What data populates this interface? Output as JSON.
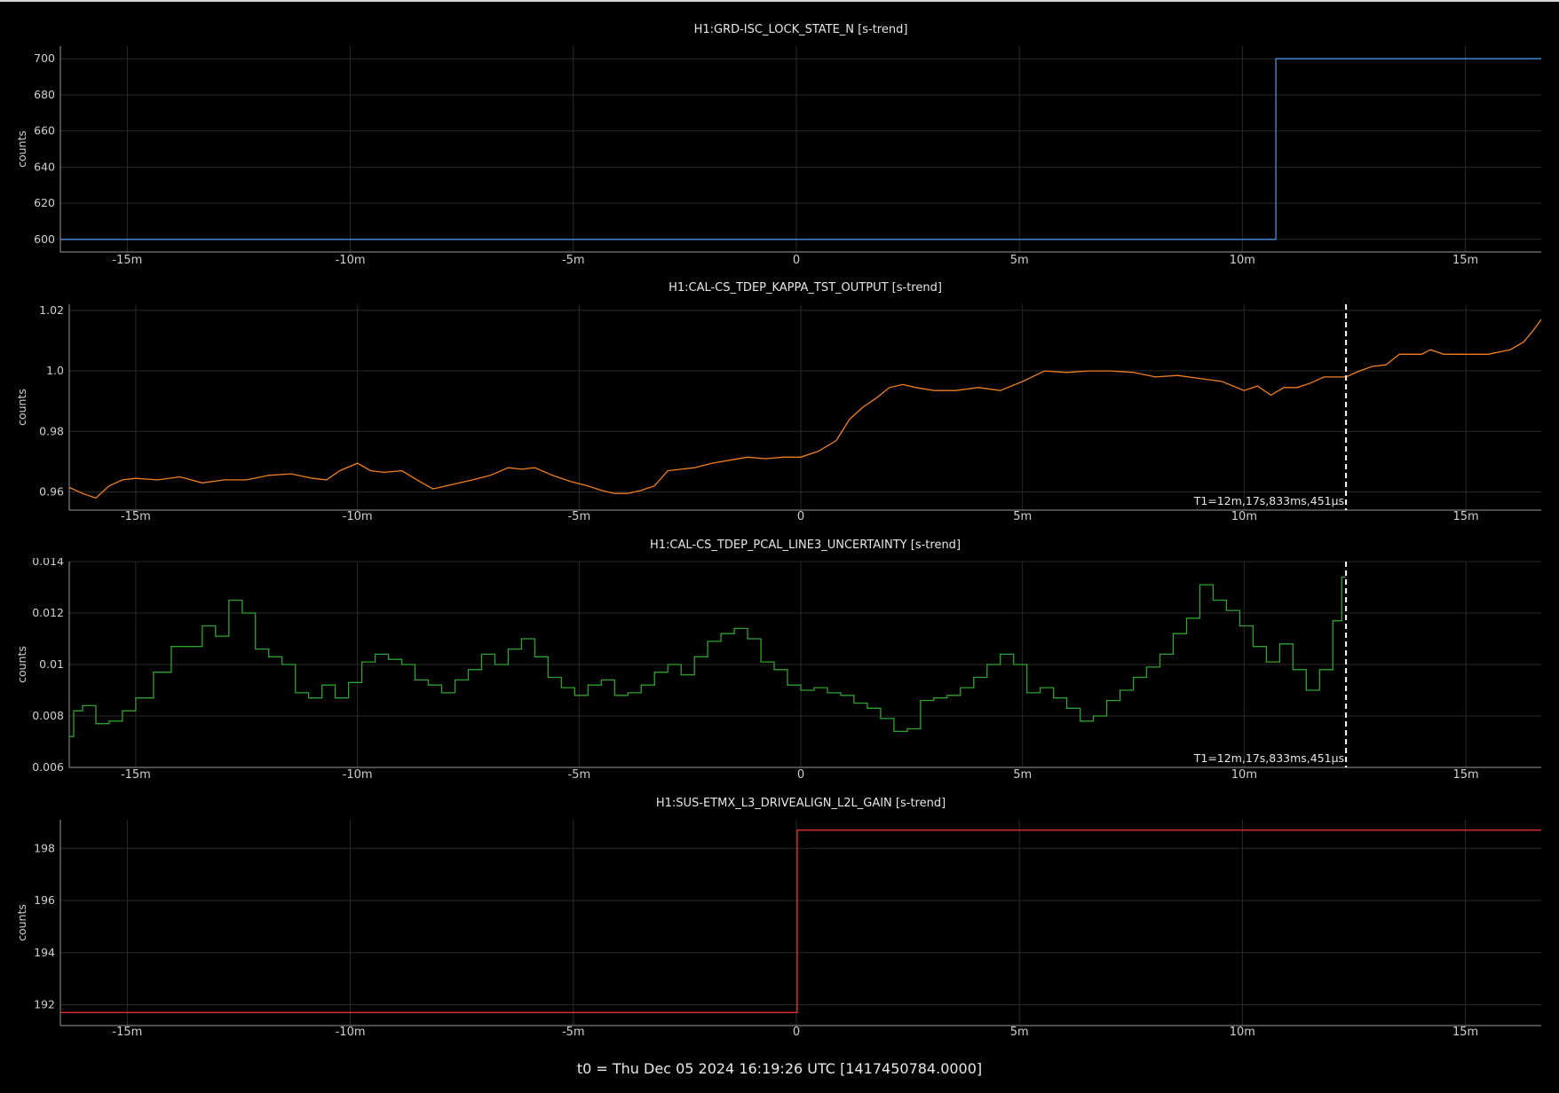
{
  "footer": "t0 = Thu Dec 05 2024 16:19:26 UTC [1417450784.0000]",
  "cursor": {
    "x": 12.297,
    "label": "T1=12m,17s,833ms,451µs"
  },
  "chart_data": [
    {
      "type": "line",
      "step": true,
      "title": "H1:GRD-ISC_LOCK_STATE_N [s-trend]",
      "ylabel": "counts",
      "color": "#4a8fd8",
      "xunit": "minutes",
      "xlim": [
        -16.5,
        16.7
      ],
      "ylim": [
        593,
        707
      ],
      "xticks": [
        -15,
        -10,
        -5,
        0,
        5,
        10,
        15
      ],
      "xtick_labels": [
        "-15m",
        "-10m",
        "-5m",
        "0",
        "5m",
        "10m",
        "15m"
      ],
      "yticks": [
        600,
        620,
        640,
        660,
        680,
        700
      ],
      "ytick_labels": [
        "600",
        "620",
        "640",
        "660",
        "680",
        "700"
      ],
      "cursor": false,
      "series": [
        {
          "x": [
            -16.5,
            10.75,
            10.75,
            16.7
          ],
          "y": [
            600,
            600,
            700,
            700
          ]
        }
      ]
    },
    {
      "type": "line",
      "step": false,
      "title": "H1:CAL-CS_TDEP_KAPPA_TST_OUTPUT [s-trend]",
      "ylabel": "counts",
      "color": "#f07f22",
      "xunit": "minutes",
      "xlim": [
        -16.5,
        16.7
      ],
      "ylim": [
        0.954,
        1.022
      ],
      "xticks": [
        -15,
        -10,
        -5,
        0,
        5,
        10,
        15
      ],
      "xtick_labels": [
        "-15m",
        "-10m",
        "-5m",
        "0",
        "5m",
        "10m",
        "15m"
      ],
      "yticks": [
        0.96,
        0.98,
        1.0,
        1.02
      ],
      "ytick_labels": [
        "0.96",
        "0.98",
        "1.0",
        "1.02"
      ],
      "cursor": true,
      "series": [
        {
          "x": [
            -16.5,
            -16.2,
            -15.9,
            -15.6,
            -15.3,
            -15.0,
            -14.5,
            -14.0,
            -13.5,
            -13.0,
            -12.5,
            -12.0,
            -11.5,
            -11.0,
            -10.7,
            -10.4,
            -10.0,
            -9.7,
            -9.4,
            -9.0,
            -8.6,
            -8.3,
            -8.0,
            -7.7,
            -7.4,
            -7.0,
            -6.6,
            -6.3,
            -6.0,
            -5.6,
            -5.2,
            -4.8,
            -4.5,
            -4.2,
            -3.9,
            -3.6,
            -3.3,
            -3.0,
            -2.7,
            -2.4,
            -2.0,
            -1.6,
            -1.2,
            -0.8,
            -0.4,
            0.0,
            0.4,
            0.8,
            1.1,
            1.4,
            1.7,
            2.0,
            2.3,
            2.6,
            3.0,
            3.5,
            4.0,
            4.5,
            5.0,
            5.5,
            6.0,
            6.5,
            7.0,
            7.5,
            8.0,
            8.5,
            9.0,
            9.5,
            10.0,
            10.3,
            10.6,
            10.9,
            11.2,
            11.5,
            11.8,
            12.0,
            12.3,
            12.6,
            12.9,
            13.2,
            13.5,
            14.0,
            14.2,
            14.5,
            15.0,
            15.5,
            16.0,
            16.3,
            16.5,
            16.7
          ],
          "y": [
            0.9615,
            0.9595,
            0.958,
            0.962,
            0.964,
            0.9645,
            0.964,
            0.965,
            0.963,
            0.964,
            0.964,
            0.9655,
            0.966,
            0.9645,
            0.964,
            0.967,
            0.9695,
            0.967,
            0.9665,
            0.967,
            0.9635,
            0.961,
            0.962,
            0.963,
            0.964,
            0.9655,
            0.968,
            0.9675,
            0.968,
            0.9655,
            0.9635,
            0.962,
            0.9605,
            0.9595,
            0.9595,
            0.9605,
            0.962,
            0.967,
            0.9675,
            0.968,
            0.9695,
            0.9705,
            0.9715,
            0.971,
            0.9715,
            0.9715,
            0.9735,
            0.977,
            0.984,
            0.988,
            0.991,
            0.9945,
            0.9955,
            0.9945,
            0.9935,
            0.9935,
            0.9945,
            0.9935,
            0.9965,
            1.0,
            0.9995,
            1.0,
            1.0,
            0.9995,
            0.998,
            0.9985,
            0.9975,
            0.9965,
            0.9935,
            0.995,
            0.992,
            0.9945,
            0.9945,
            0.996,
            0.998,
            0.998,
            0.998,
            1.0,
            1.0015,
            1.002,
            1.0055,
            1.0055,
            1.007,
            1.0055,
            1.0055,
            1.0055,
            1.007,
            1.0095,
            1.013,
            1.017
          ]
        }
      ]
    },
    {
      "type": "line",
      "step": true,
      "title": "H1:CAL-CS_TDEP_PCAL_LINE3_UNCERTAINTY [s-trend]",
      "ylabel": "counts",
      "color": "#2fa22f",
      "xunit": "minutes",
      "xlim": [
        -16.5,
        16.7
      ],
      "ylim": [
        0.006,
        0.014
      ],
      "xticks": [
        -15,
        -10,
        -5,
        0,
        5,
        10,
        15
      ],
      "xtick_labels": [
        "-15m",
        "-10m",
        "-5m",
        "0",
        "5m",
        "10m",
        "15m"
      ],
      "yticks": [
        0.006,
        0.008,
        0.01,
        0.012,
        0.014
      ],
      "ytick_labels": [
        "0.006",
        "0.008",
        "0.01",
        "0.012",
        "0.014"
      ],
      "cursor": true,
      "series": [
        {
          "x": [
            -16.5,
            -16.4,
            -16.2,
            -15.9,
            -15.6,
            -15.3,
            -15.0,
            -14.6,
            -14.2,
            -13.8,
            -13.5,
            -13.2,
            -12.9,
            -12.6,
            -12.3,
            -12.0,
            -11.7,
            -11.4,
            -11.1,
            -10.8,
            -10.5,
            -10.2,
            -9.9,
            -9.6,
            -9.3,
            -9.0,
            -8.7,
            -8.4,
            -8.1,
            -7.8,
            -7.5,
            -7.2,
            -6.9,
            -6.6,
            -6.3,
            -6.0,
            -5.7,
            -5.4,
            -5.1,
            -4.8,
            -4.5,
            -4.2,
            -3.9,
            -3.6,
            -3.3,
            -3.0,
            -2.7,
            -2.4,
            -2.1,
            -1.8,
            -1.5,
            -1.2,
            -0.9,
            -0.6,
            -0.3,
            0.0,
            0.3,
            0.6,
            0.9,
            1.2,
            1.5,
            1.8,
            2.1,
            2.4,
            2.7,
            3.0,
            3.3,
            3.6,
            3.9,
            4.2,
            4.5,
            4.8,
            5.1,
            5.4,
            5.7,
            6.0,
            6.3,
            6.6,
            6.9,
            7.2,
            7.5,
            7.8,
            8.1,
            8.4,
            8.7,
            9.0,
            9.3,
            9.6,
            9.9,
            10.2,
            10.5,
            10.8,
            11.1,
            11.4,
            11.7,
            12.0,
            12.2,
            12.3
          ],
          "y": [
            0.0072,
            0.0082,
            0.0084,
            0.0077,
            0.0078,
            0.0082,
            0.0087,
            0.0097,
            0.0107,
            0.0107,
            0.0115,
            0.0111,
            0.0125,
            0.012,
            0.0106,
            0.0103,
            0.01,
            0.0089,
            0.0087,
            0.0092,
            0.0087,
            0.0093,
            0.0101,
            0.0104,
            0.0102,
            0.01,
            0.0094,
            0.0092,
            0.0089,
            0.0094,
            0.0098,
            0.0104,
            0.01,
            0.0106,
            0.011,
            0.0103,
            0.0095,
            0.0091,
            0.0088,
            0.0092,
            0.0094,
            0.0088,
            0.0089,
            0.0092,
            0.0097,
            0.01,
            0.0096,
            0.0103,
            0.0109,
            0.0112,
            0.0114,
            0.011,
            0.0101,
            0.0098,
            0.0092,
            0.009,
            0.0091,
            0.0089,
            0.0088,
            0.0085,
            0.0083,
            0.0079,
            0.0074,
            0.0075,
            0.0086,
            0.0087,
            0.0088,
            0.0091,
            0.0095,
            0.01,
            0.0104,
            0.01,
            0.0089,
            0.0091,
            0.0087,
            0.0083,
            0.0078,
            0.008,
            0.0086,
            0.009,
            0.0095,
            0.0099,
            0.0104,
            0.0112,
            0.0118,
            0.0131,
            0.0125,
            0.0121,
            0.0115,
            0.0107,
            0.0101,
            0.0108,
            0.0098,
            0.009,
            0.0098,
            0.0117,
            0.0134,
            0.0134
          ]
        }
      ]
    },
    {
      "type": "line",
      "step": true,
      "title": "H1:SUS-ETMX_L3_DRIVEALIGN_L2L_GAIN [s-trend]",
      "ylabel": "counts",
      "color": "#e03030",
      "xunit": "minutes",
      "xlim": [
        -16.5,
        16.7
      ],
      "ylim": [
        191.2,
        199.1
      ],
      "xticks": [
        -15,
        -10,
        -5,
        0,
        5,
        10,
        15
      ],
      "xtick_labels": [
        "-15m",
        "-10m",
        "-5m",
        "0",
        "5m",
        "10m",
        "15m"
      ],
      "yticks": [
        192,
        194,
        196,
        198
      ],
      "ytick_labels": [
        "192",
        "194",
        "196",
        "198"
      ],
      "cursor": false,
      "series": [
        {
          "x": [
            -16.5,
            0.02,
            0.02,
            16.7
          ],
          "y": [
            191.7,
            191.7,
            198.7,
            198.7
          ]
        }
      ]
    }
  ]
}
